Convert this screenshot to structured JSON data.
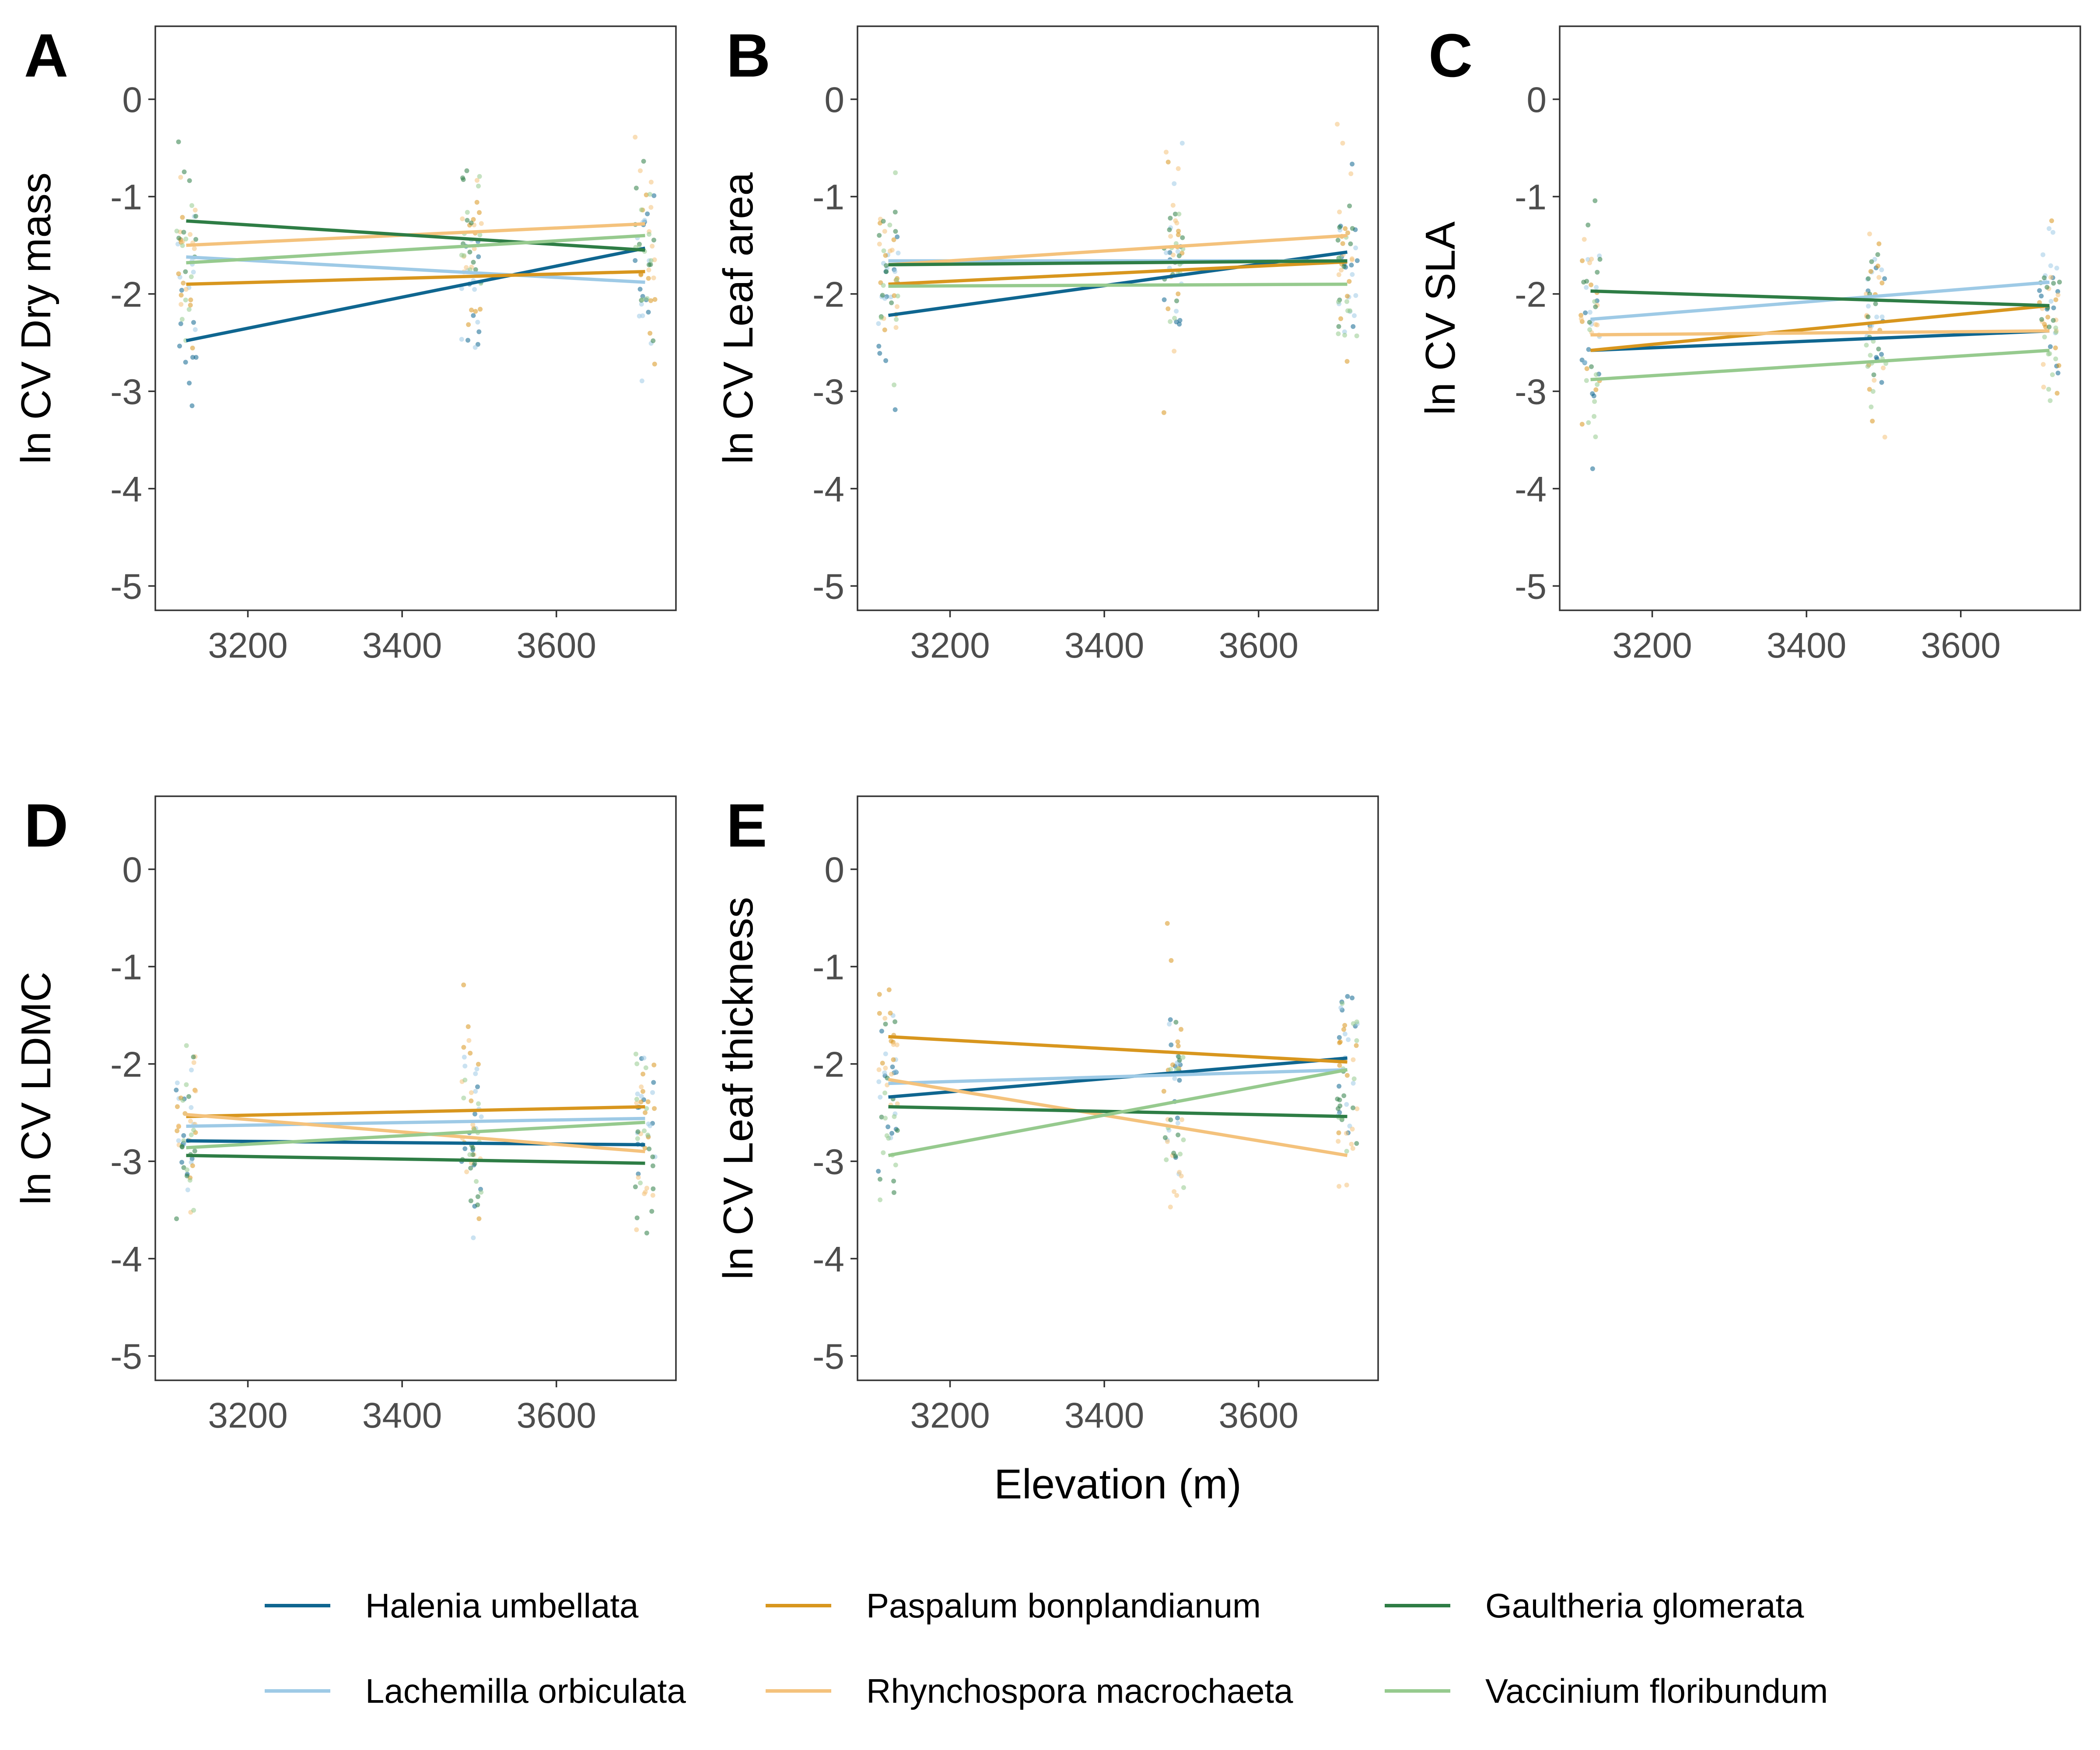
{
  "colors": {
    "Halenia umbellata": "#0f6690",
    "Lachemilla orbiculata": "#9ecae6",
    "Paspalum bonplandianum": "#d8961e",
    "Rhynchospora macrochaeta": "#f4c27c",
    "Gaultheria glomerata": "#2e7d45",
    "Vaccinium floribundum": "#96ca8e"
  },
  "legend": {
    "items": [
      "Halenia umbellata",
      "Paspalum bonplandianum",
      "Gaultheria glomerata",
      "Lachemilla orbiculata",
      "Rhynchospora macrochaeta",
      "Vaccinium floribundum"
    ]
  },
  "chart_data": [
    {
      "type": "scatter",
      "panel": "A",
      "ylabel": "ln CV Dry mass",
      "xlabel": "",
      "xlim": [
        3080,
        3755
      ],
      "ylim": [
        -5.25,
        0.75
      ],
      "xticks": [
        "3200",
        "3400",
        "3600"
      ],
      "yticks": [
        "0",
        "-1",
        "-2",
        "-3",
        "-4",
        "-5"
      ],
      "sites": [
        3120,
        3490,
        3715
      ],
      "series": [
        {
          "name": "Halenia umbellata",
          "line": [
            [
              3120,
              -2.48
            ],
            [
              3715,
              -1.53
            ]
          ]
        },
        {
          "name": "Lachemilla orbiculata",
          "line": [
            [
              3120,
              -1.62
            ],
            [
              3715,
              -1.88
            ]
          ]
        },
        {
          "name": "Paspalum bonplandianum",
          "line": [
            [
              3120,
              -1.9
            ],
            [
              3715,
              -1.77
            ]
          ]
        },
        {
          "name": "Rhynchospora macrochaeta",
          "line": [
            [
              3120,
              -1.5
            ],
            [
              3715,
              -1.28
            ]
          ]
        },
        {
          "name": "Gaultheria glomerata",
          "line": [
            [
              3120,
              -1.25
            ],
            [
              3715,
              -1.55
            ]
          ]
        },
        {
          "name": "Vaccinium floribundum",
          "line": [
            [
              3120,
              -1.68
            ],
            [
              3715,
              -1.4
            ]
          ]
        }
      ]
    },
    {
      "type": "scatter",
      "panel": "B",
      "ylabel": "ln CV Leaf area",
      "xlabel": "",
      "xlim": [
        3080,
        3755
      ],
      "ylim": [
        -5.25,
        0.75
      ],
      "xticks": [
        "3200",
        "3400",
        "3600"
      ],
      "yticks": [
        "0",
        "-1",
        "-2",
        "-3",
        "-4",
        "-5"
      ],
      "sites": [
        3120,
        3490,
        3715
      ],
      "series": [
        {
          "name": "Halenia umbellata",
          "line": [
            [
              3120,
              -2.22
            ],
            [
              3715,
              -1.57
            ]
          ]
        },
        {
          "name": "Lachemilla orbiculata",
          "line": [
            [
              3120,
              -1.66
            ],
            [
              3715,
              -1.66
            ]
          ]
        },
        {
          "name": "Paspalum bonplandianum",
          "line": [
            [
              3120,
              -1.9
            ],
            [
              3715,
              -1.67
            ]
          ]
        },
        {
          "name": "Rhynchospora macrochaeta",
          "line": [
            [
              3120,
              -1.7
            ],
            [
              3715,
              -1.4
            ]
          ]
        },
        {
          "name": "Gaultheria glomerata",
          "line": [
            [
              3120,
              -1.7
            ],
            [
              3715,
              -1.66
            ]
          ]
        },
        {
          "name": "Vaccinium floribundum",
          "line": [
            [
              3120,
              -1.92
            ],
            [
              3715,
              -1.9
            ]
          ]
        }
      ]
    },
    {
      "type": "scatter",
      "panel": "C",
      "ylabel": "ln CV SLA",
      "xlabel": "",
      "xlim": [
        3080,
        3755
      ],
      "ylim": [
        -5.25,
        0.75
      ],
      "xticks": [
        "3200",
        "3400",
        "3600"
      ],
      "yticks": [
        "0",
        "-1",
        "-2",
        "-3",
        "-4",
        "-5"
      ],
      "sites": [
        3120,
        3490,
        3715
      ],
      "series": [
        {
          "name": "Halenia umbellata",
          "line": [
            [
              3120,
              -2.58
            ],
            [
              3715,
              -2.38
            ]
          ]
        },
        {
          "name": "Lachemilla orbiculata",
          "line": [
            [
              3120,
              -2.26
            ],
            [
              3715,
              -1.88
            ]
          ]
        },
        {
          "name": "Paspalum bonplandianum",
          "line": [
            [
              3120,
              -2.58
            ],
            [
              3715,
              -2.12
            ]
          ]
        },
        {
          "name": "Rhynchospora macrochaeta",
          "line": [
            [
              3120,
              -2.42
            ],
            [
              3715,
              -2.38
            ]
          ]
        },
        {
          "name": "Gaultheria glomerata",
          "line": [
            [
              3120,
              -1.97
            ],
            [
              3715,
              -2.12
            ]
          ]
        },
        {
          "name": "Vaccinium floribundum",
          "line": [
            [
              3120,
              -2.88
            ],
            [
              3715,
              -2.58
            ]
          ]
        }
      ]
    },
    {
      "type": "scatter",
      "panel": "D",
      "ylabel": "ln CV LDMC",
      "xlabel": "",
      "xlim": [
        3080,
        3755
      ],
      "ylim": [
        -5.25,
        0.75
      ],
      "xticks": [
        "3200",
        "3400",
        "3600"
      ],
      "yticks": [
        "0",
        "-1",
        "-2",
        "-3",
        "-4",
        "-5"
      ],
      "sites": [
        3120,
        3490,
        3715
      ],
      "series": [
        {
          "name": "Halenia umbellata",
          "line": [
            [
              3120,
              -2.79
            ],
            [
              3715,
              -2.83
            ]
          ]
        },
        {
          "name": "Lachemilla orbiculata",
          "line": [
            [
              3120,
              -2.64
            ],
            [
              3715,
              -2.56
            ]
          ]
        },
        {
          "name": "Paspalum bonplandianum",
          "line": [
            [
              3120,
              -2.54
            ],
            [
              3715,
              -2.44
            ]
          ]
        },
        {
          "name": "Rhynchospora macrochaeta",
          "line": [
            [
              3120,
              -2.52
            ],
            [
              3715,
              -2.9
            ]
          ]
        },
        {
          "name": "Gaultheria glomerata",
          "line": [
            [
              3120,
              -2.94
            ],
            [
              3715,
              -3.02
            ]
          ]
        },
        {
          "name": "Vaccinium floribundum",
          "line": [
            [
              3120,
              -2.86
            ],
            [
              3715,
              -2.6
            ]
          ]
        }
      ]
    },
    {
      "type": "scatter",
      "panel": "E",
      "ylabel": "ln CV Leaf thickness",
      "xlabel": "Elevation (m)",
      "xlim": [
        3080,
        3755
      ],
      "ylim": [
        -5.25,
        0.75
      ],
      "xticks": [
        "3200",
        "3400",
        "3600"
      ],
      "yticks": [
        "0",
        "-1",
        "-2",
        "-3",
        "-4",
        "-5"
      ],
      "sites": [
        3120,
        3490,
        3715
      ],
      "series": [
        {
          "name": "Halenia umbellata",
          "line": [
            [
              3120,
              -2.34
            ],
            [
              3715,
              -1.94
            ]
          ]
        },
        {
          "name": "Lachemilla orbiculata",
          "line": [
            [
              3120,
              -2.2
            ],
            [
              3715,
              -2.06
            ]
          ]
        },
        {
          "name": "Paspalum bonplandianum",
          "line": [
            [
              3120,
              -1.72
            ],
            [
              3715,
              -1.98
            ]
          ]
        },
        {
          "name": "Rhynchospora macrochaeta",
          "line": [
            [
              3120,
              -2.16
            ],
            [
              3715,
              -2.94
            ]
          ]
        },
        {
          "name": "Gaultheria glomerata",
          "line": [
            [
              3120,
              -2.44
            ],
            [
              3715,
              -2.54
            ]
          ]
        },
        {
          "name": "Vaccinium floribundum",
          "line": [
            [
              3120,
              -2.94
            ],
            [
              3715,
              -2.06
            ]
          ]
        }
      ]
    }
  ]
}
